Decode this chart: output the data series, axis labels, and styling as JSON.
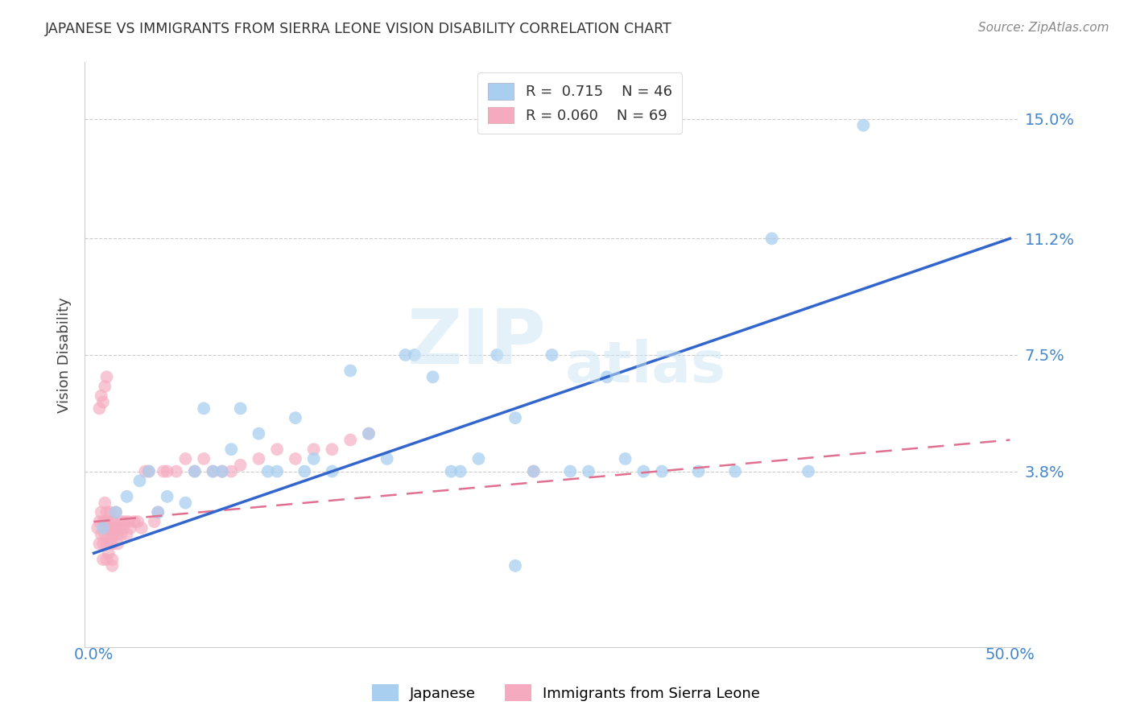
{
  "title": "JAPANESE VS IMMIGRANTS FROM SIERRA LEONE VISION DISABILITY CORRELATION CHART",
  "source": "Source: ZipAtlas.com",
  "ylabel": "Vision Disability",
  "ytick_labels": [
    "3.8%",
    "7.5%",
    "11.2%",
    "15.0%"
  ],
  "ytick_values": [
    0.038,
    0.075,
    0.112,
    0.15
  ],
  "xlim": [
    -0.005,
    0.505
  ],
  "ylim": [
    -0.018,
    0.168
  ],
  "legend_r_japanese": "R =  0.715",
  "legend_n_japanese": "N = 46",
  "legend_r_sierra": "R = 0.060",
  "legend_n_sierra": "N = 69",
  "color_japanese": "#A8CFEF",
  "color_sierra": "#F5AABF",
  "color_line_japanese": "#3366CC",
  "color_line_sierra": "#E07090",
  "watermark_zip": "ZIP",
  "watermark_atlas": "atlas",
  "jap_line_x": [
    0.0,
    0.5
  ],
  "jap_line_y": [
    0.012,
    0.112
  ],
  "sie_line_x": [
    0.0,
    0.5
  ],
  "sie_line_y": [
    0.022,
    0.048
  ],
  "japanese_x": [
    0.005,
    0.012,
    0.018,
    0.025,
    0.03,
    0.035,
    0.04,
    0.05,
    0.055,
    0.06,
    0.065,
    0.07,
    0.075,
    0.08,
    0.09,
    0.095,
    0.1,
    0.11,
    0.115,
    0.12,
    0.13,
    0.14,
    0.15,
    0.16,
    0.17,
    0.175,
    0.185,
    0.195,
    0.2,
    0.21,
    0.22,
    0.23,
    0.24,
    0.25,
    0.26,
    0.27,
    0.28,
    0.29,
    0.3,
    0.31,
    0.33,
    0.35,
    0.37,
    0.39,
    0.42,
    0.23
  ],
  "japanese_y": [
    0.02,
    0.025,
    0.03,
    0.035,
    0.038,
    0.025,
    0.03,
    0.028,
    0.038,
    0.058,
    0.038,
    0.038,
    0.045,
    0.058,
    0.05,
    0.038,
    0.038,
    0.055,
    0.038,
    0.042,
    0.038,
    0.07,
    0.05,
    0.042,
    0.075,
    0.075,
    0.068,
    0.038,
    0.038,
    0.042,
    0.075,
    0.055,
    0.038,
    0.075,
    0.038,
    0.038,
    0.068,
    0.042,
    0.038,
    0.038,
    0.038,
    0.038,
    0.112,
    0.038,
    0.148,
    0.008
  ],
  "sierra_x": [
    0.002,
    0.003,
    0.003,
    0.004,
    0.004,
    0.005,
    0.005,
    0.005,
    0.006,
    0.006,
    0.006,
    0.007,
    0.007,
    0.007,
    0.008,
    0.008,
    0.008,
    0.009,
    0.009,
    0.009,
    0.01,
    0.01,
    0.01,
    0.01,
    0.01,
    0.011,
    0.011,
    0.012,
    0.012,
    0.013,
    0.013,
    0.014,
    0.015,
    0.015,
    0.016,
    0.017,
    0.018,
    0.019,
    0.02,
    0.022,
    0.024,
    0.026,
    0.028,
    0.03,
    0.033,
    0.035,
    0.038,
    0.04,
    0.045,
    0.05,
    0.055,
    0.06,
    0.065,
    0.07,
    0.075,
    0.08,
    0.09,
    0.1,
    0.11,
    0.12,
    0.13,
    0.14,
    0.15,
    0.003,
    0.004,
    0.005,
    0.006,
    0.007,
    0.24
  ],
  "sierra_y": [
    0.02,
    0.022,
    0.015,
    0.018,
    0.025,
    0.022,
    0.015,
    0.01,
    0.022,
    0.028,
    0.018,
    0.025,
    0.015,
    0.01,
    0.022,
    0.018,
    0.012,
    0.025,
    0.02,
    0.015,
    0.022,
    0.018,
    0.015,
    0.01,
    0.008,
    0.022,
    0.018,
    0.025,
    0.02,
    0.018,
    0.015,
    0.02,
    0.022,
    0.018,
    0.02,
    0.022,
    0.018,
    0.022,
    0.02,
    0.022,
    0.022,
    0.02,
    0.038,
    0.038,
    0.022,
    0.025,
    0.038,
    0.038,
    0.038,
    0.042,
    0.038,
    0.042,
    0.038,
    0.038,
    0.038,
    0.04,
    0.042,
    0.045,
    0.042,
    0.045,
    0.045,
    0.048,
    0.05,
    0.058,
    0.062,
    0.06,
    0.065,
    0.068,
    0.038
  ]
}
